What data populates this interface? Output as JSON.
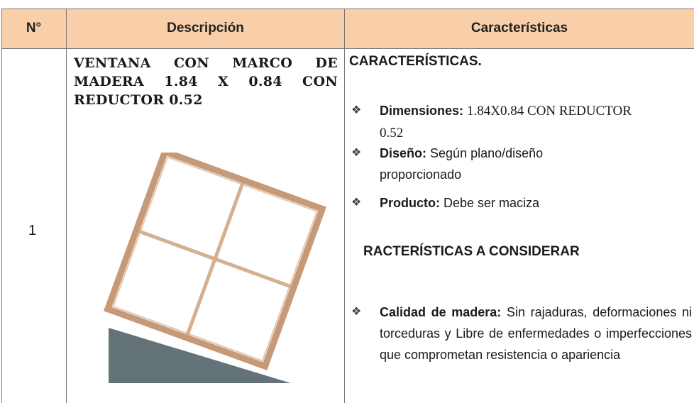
{
  "table": {
    "header": [
      "N°",
      "Descripción",
      "Características"
    ],
    "rows": [
      {
        "number": "1",
        "description": "VENTANA CON MARCO DE MADERA 1.84 X 0.84 CON REDUCTOR 0.52",
        "heading": "CARACTERÍSTICAS.",
        "items": [
          {
            "label": "Dimensiones:",
            "text": "1.84X0.84 CON REDUCTOR 0.52"
          },
          {
            "label": "Diseño:",
            "text": "Según plano/diseño proporcionado"
          },
          {
            "label": "Producto:",
            "text": "Debe ser maciza"
          }
        ],
        "heading2": "RACTERÍSTICAS A CONSIDERAR",
        "items2": [
          {
            "label": "Calidad de madera:",
            "text": "Sin rajaduras, deformaciones ni torceduras y Libre de enfermedades o imperfecciones que comprometan resistencia o apariencia"
          }
        ]
      }
    ]
  }
}
